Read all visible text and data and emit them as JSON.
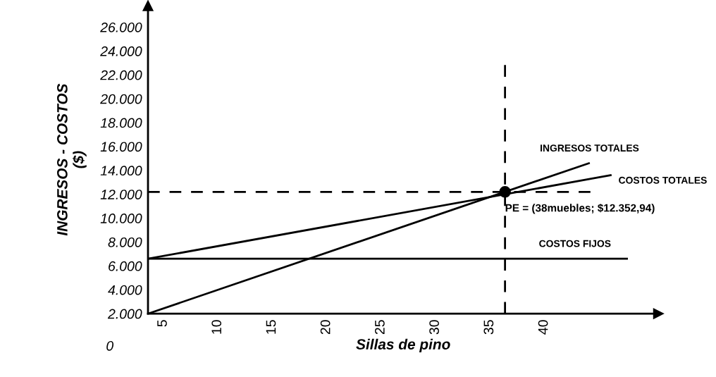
{
  "chart_data": {
    "type": "line",
    "xlabel": "Sillas de pino",
    "ylabel": "INGRESOS - COSTOS\n($)",
    "xlim": [
      3.6,
      50.5
    ],
    "ylim": [
      2000,
      27800
    ],
    "xticks": [
      5,
      10,
      15,
      20,
      25,
      30,
      35,
      40
    ],
    "yticks": [
      {
        "value": 2000,
        "label": "2.000"
      },
      {
        "value": 4000,
        "label": "4.000"
      },
      {
        "value": 6000,
        "label": "6.000"
      },
      {
        "value": 8000,
        "label": "8.000"
      },
      {
        "value": 10000,
        "label": "10.000"
      },
      {
        "value": 12000,
        "label": "12.000"
      },
      {
        "value": 14000,
        "label": "14.000"
      },
      {
        "value": 16000,
        "label": "16.000"
      },
      {
        "value": 18000,
        "label": "18.000"
      },
      {
        "value": 20000,
        "label": "20.000"
      },
      {
        "value": 22000,
        "label": "22.000"
      },
      {
        "value": 24000,
        "label": "24.000"
      },
      {
        "value": 26000,
        "label": "26.000"
      }
    ],
    "series": [
      {
        "name": "INGRESOS TOTALES",
        "color": "#000000",
        "x": [
          3.6,
          44.1
        ],
        "values": [
          2000,
          14600
        ]
      },
      {
        "name": "COSTOS TOTALES",
        "color": "#000000",
        "x": [
          3.6,
          46.1
        ],
        "values": [
          6600,
          13600
        ]
      },
      {
        "name": "COSTOS FIJOS",
        "color": "#000000",
        "x": [
          3.6,
          47.6
        ],
        "values": [
          6600,
          6600
        ]
      },
      {
        "type": "scatter",
        "color": "#000000",
        "x": [
          36.4
        ],
        "values": [
          12200
        ],
        "marker": "circle"
      }
    ],
    "ref_lines": [
      {
        "axis": "x",
        "value": 36.4,
        "line_style": "dashed",
        "color": "#000000"
      },
      {
        "axis": "y",
        "value": 12200,
        "line_style": "dashed",
        "color": "#000000"
      }
    ],
    "annotations": [
      {
        "text": "PE = (38muebles; $12.352,94)",
        "x": 36.4,
        "y": 12200
      },
      "0"
    ],
    "grid": false,
    "legend": false
  }
}
